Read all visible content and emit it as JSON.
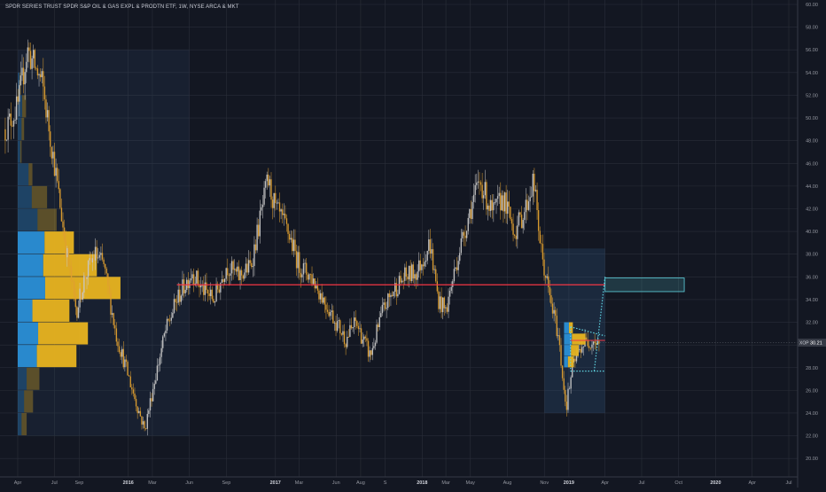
{
  "chart_data": {
    "type": "candlestick",
    "title": "SPDR SERIES TRUST SPDR S&P OIL & GAS EXPL & PRODTN ETF, 1W, NYSE ARCA & MKT",
    "symbol": "XOP",
    "last_price": "30.21",
    "last_price_value": 30.21,
    "ylim": [
      19,
      60
    ],
    "y_ticks": [
      20,
      22,
      24,
      26,
      28,
      30,
      32,
      34,
      36,
      38,
      40,
      42,
      44,
      46,
      48,
      50,
      52,
      54,
      56,
      58,
      60
    ],
    "y_tick_labels": [
      "20.00",
      "22.00",
      "24.00",
      "26.00",
      "28.00",
      "30.00",
      "32.00",
      "34.00",
      "36.00",
      "38.00",
      "40.00",
      "42.00",
      "44.00",
      "46.00",
      "48.00",
      "50.00",
      "52.00",
      "54.00",
      "56.00",
      "58.00",
      "60.00"
    ],
    "x_ticks": [
      {
        "label": "Apr",
        "date": "2015-04-01"
      },
      {
        "label": "Jul",
        "date": "2015-07-01"
      },
      {
        "label": "Sep",
        "date": "2015-09-01"
      },
      {
        "label": "2016",
        "date": "2016-01-01"
      },
      {
        "label": "Mar",
        "date": "2016-03-01"
      },
      {
        "label": "Jun",
        "date": "2016-06-01"
      },
      {
        "label": "Sep",
        "date": "2016-09-01"
      },
      {
        "label": "2017",
        "date": "2017-01-01"
      },
      {
        "label": "Mar",
        "date": "2017-03-01"
      },
      {
        "label": "Jun",
        "date": "2017-06-01"
      },
      {
        "label": "Aug",
        "date": "2017-08-01"
      },
      {
        "label": "S",
        "date": "2017-10-01"
      },
      {
        "label": "2018",
        "date": "2018-01-01"
      },
      {
        "label": "Mar",
        "date": "2018-03-01"
      },
      {
        "label": "May",
        "date": "2018-05-01"
      },
      {
        "label": "Aug",
        "date": "2018-08-01"
      },
      {
        "label": "Nov",
        "date": "2018-11-01"
      },
      {
        "label": "2019",
        "date": "2019-01-01"
      },
      {
        "label": "Apr",
        "date": "2019-04-01"
      },
      {
        "label": "Jul",
        "date": "2019-07-01"
      },
      {
        "label": "Oct",
        "date": "2019-10-01"
      },
      {
        "label": "2020",
        "date": "2020-01-01"
      },
      {
        "label": "Apr",
        "date": "2020-04-01"
      },
      {
        "label": "Jul",
        "date": "2020-07-01"
      }
    ],
    "price_path": [
      {
        "date": "2015-03-01",
        "close": 49
      },
      {
        "date": "2015-04-01",
        "close": 51
      },
      {
        "date": "2015-04-25",
        "close": 56
      },
      {
        "date": "2015-06-01",
        "close": 53
      },
      {
        "date": "2015-07-01",
        "close": 46
      },
      {
        "date": "2015-08-01",
        "close": 38
      },
      {
        "date": "2015-08-25",
        "close": 33
      },
      {
        "date": "2015-09-15",
        "close": 36
      },
      {
        "date": "2015-10-10",
        "close": 38
      },
      {
        "date": "2015-11-01",
        "close": 37
      },
      {
        "date": "2015-12-01",
        "close": 31
      },
      {
        "date": "2016-01-20",
        "close": 25
      },
      {
        "date": "2016-02-11",
        "close": 22.5
      },
      {
        "date": "2016-03-01",
        "close": 26
      },
      {
        "date": "2016-04-01",
        "close": 31
      },
      {
        "date": "2016-05-01",
        "close": 34
      },
      {
        "date": "2016-06-08",
        "close": 36.5
      },
      {
        "date": "2016-07-01",
        "close": 35
      },
      {
        "date": "2016-08-01",
        "close": 34
      },
      {
        "date": "2016-09-01",
        "close": 37
      },
      {
        "date": "2016-10-01",
        "close": 36
      },
      {
        "date": "2016-11-01",
        "close": 37
      },
      {
        "date": "2016-12-13",
        "close": 44.5
      },
      {
        "date": "2017-01-01",
        "close": 42
      },
      {
        "date": "2017-02-01",
        "close": 40
      },
      {
        "date": "2017-03-01",
        "close": 37
      },
      {
        "date": "2017-04-01",
        "close": 36
      },
      {
        "date": "2017-05-01",
        "close": 34
      },
      {
        "date": "2017-06-01",
        "close": 32
      },
      {
        "date": "2017-06-25",
        "close": 30.5
      },
      {
        "date": "2017-07-20",
        "close": 32
      },
      {
        "date": "2017-08-25",
        "close": 29
      },
      {
        "date": "2017-09-25",
        "close": 33
      },
      {
        "date": "2017-10-25",
        "close": 35
      },
      {
        "date": "2017-11-20",
        "close": 36
      },
      {
        "date": "2017-12-20",
        "close": 36.5
      },
      {
        "date": "2018-01-20",
        "close": 39
      },
      {
        "date": "2018-02-10",
        "close": 34
      },
      {
        "date": "2018-03-01",
        "close": 33
      },
      {
        "date": "2018-04-01",
        "close": 38
      },
      {
        "date": "2018-05-01",
        "close": 42
      },
      {
        "date": "2018-05-25",
        "close": 44.5
      },
      {
        "date": "2018-06-25",
        "close": 41.5
      },
      {
        "date": "2018-07-20",
        "close": 43
      },
      {
        "date": "2018-08-20",
        "close": 40
      },
      {
        "date": "2018-09-15",
        "close": 42
      },
      {
        "date": "2018-10-05",
        "close": 44.5
      },
      {
        "date": "2018-10-25",
        "close": 38
      },
      {
        "date": "2018-11-15",
        "close": 34
      },
      {
        "date": "2018-12-05",
        "close": 31
      },
      {
        "date": "2018-12-25",
        "close": 24.5
      },
      {
        "date": "2019-01-10",
        "close": 28
      },
      {
        "date": "2019-02-01",
        "close": 30
      },
      {
        "date": "2019-03-01",
        "close": 30.5
      },
      {
        "date": "2019-03-20",
        "close": 30.21
      }
    ],
    "annotations": {
      "horizontal_line_price": 35.3,
      "horizontal_line_color": "#f23645",
      "target_box": {
        "start": "2019-04-01",
        "end": "2019-10-15",
        "low": 34.7,
        "high": 35.9
      },
      "channel": {
        "start": "2019-01-05",
        "end": "2019-04-01",
        "upper_start": 31.6,
        "upper_end": 30.8,
        "lower_start": 27.7,
        "lower_end": 27.7,
        "upper_target": 36.0
      },
      "recent_line_price": 30.4,
      "main_volume_profile": {
        "start": "2015-04-01",
        "end": "2016-06-01",
        "low": 22,
        "high": 56
      }
    },
    "volume_profile_main": [
      {
        "low": 22,
        "high": 24,
        "up": 8,
        "down": 6,
        "faded": true
      },
      {
        "low": 24,
        "high": 26,
        "up": 14,
        "down": 10,
        "faded": true
      },
      {
        "low": 26,
        "high": 28,
        "up": 20,
        "down": 14,
        "faded": true
      },
      {
        "low": 28,
        "high": 30,
        "up": 62,
        "down": 30,
        "faded": false
      },
      {
        "low": 30,
        "high": 32,
        "up": 78,
        "down": 32,
        "faded": false
      },
      {
        "low": 32,
        "high": 34,
        "up": 58,
        "down": 23,
        "faded": false
      },
      {
        "low": 34,
        "high": 36,
        "up": 118,
        "down": 43,
        "faded": false
      },
      {
        "low": 36,
        "high": 38,
        "up": 84,
        "down": 40,
        "faded": false
      },
      {
        "low": 38,
        "high": 40,
        "up": 46,
        "down": 42,
        "faded": false
      },
      {
        "low": 40,
        "high": 42,
        "up": 30,
        "down": 31,
        "faded": true
      },
      {
        "low": 42,
        "high": 44,
        "up": 24,
        "down": 22,
        "faded": true
      },
      {
        "low": 44,
        "high": 46,
        "up": 6,
        "down": 17,
        "faded": true
      },
      {
        "low": 46,
        "high": 48,
        "up": 2,
        "down": 4,
        "faded": true
      },
      {
        "low": 48,
        "high": 50,
        "up": 4,
        "down": 6,
        "faded": true
      },
      {
        "low": 50,
        "high": 52,
        "up": 6,
        "down": 7,
        "faded": true
      },
      {
        "low": 52,
        "high": 54,
        "up": 2,
        "down": 3,
        "faded": true
      }
    ],
    "volume_profile_recent": [
      {
        "low": 28,
        "high": 29,
        "up": 6,
        "down": 4
      },
      {
        "low": 29,
        "high": 30,
        "up": 8,
        "down": 7
      },
      {
        "low": 30,
        "high": 31,
        "up": 14,
        "down": 8
      },
      {
        "low": 31,
        "high": 32,
        "up": 4,
        "down": 5
      }
    ],
    "colors": {
      "background": "#131722",
      "grid": "#2a2e39",
      "candle_up": "#c8c8c8",
      "candle_down": "#e0a030",
      "vp_up": "#e8b420",
      "vp_down": "#2a8fd6",
      "annotation": "#5fd3e0",
      "level_line": "#f23645"
    }
  }
}
